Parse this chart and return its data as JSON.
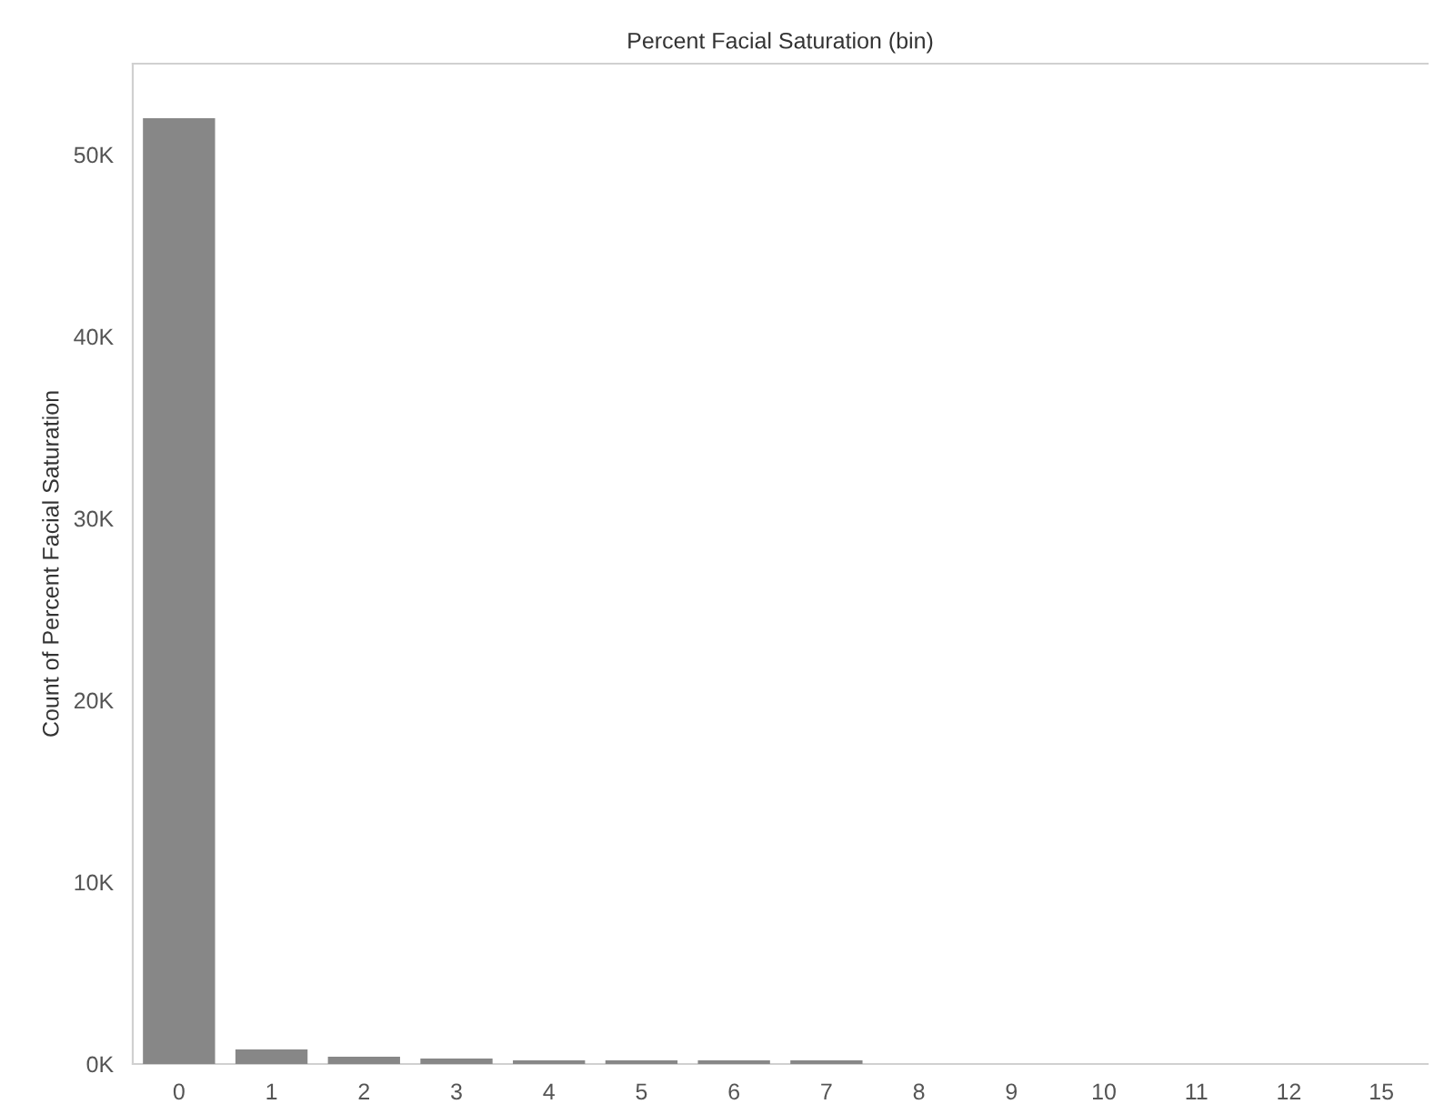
{
  "chart_data": {
    "type": "bar",
    "xlabel": "Percent Facial Saturation (bin)",
    "ylabel": "Count of Percent Facial Saturation",
    "categories": [
      "0",
      "1",
      "2",
      "3",
      "4",
      "5",
      "6",
      "7",
      "8",
      "9",
      "10",
      "11",
      "12",
      "15"
    ],
    "values": [
      52000,
      800,
      400,
      300,
      200,
      200,
      200,
      200,
      0,
      0,
      0,
      0,
      0,
      0
    ],
    "color": "#878787",
    "ylim": [
      0,
      55000
    ],
    "yticks": [
      {
        "value": 0,
        "label": "0K"
      },
      {
        "value": 10000,
        "label": "10K"
      },
      {
        "value": 20000,
        "label": "20K"
      },
      {
        "value": 30000,
        "label": "30K"
      },
      {
        "value": 40000,
        "label": "40K"
      },
      {
        "value": 50000,
        "label": "50K"
      }
    ],
    "grid": false
  }
}
